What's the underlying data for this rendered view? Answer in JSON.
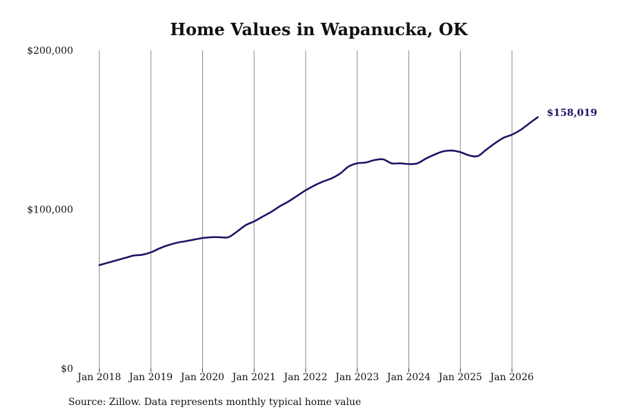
{
  "chart_data": {
    "type": "line",
    "title": "Home Values in Wapanucka, OK",
    "xlabel": "",
    "ylabel": "",
    "source": "Source: Zillow. Data represents monthly typical home value",
    "ylim": [
      0,
      200000
    ],
    "y_ticks": [
      {
        "value": 0,
        "label": "$0"
      },
      {
        "value": 100000,
        "label": "$100,000"
      },
      {
        "value": 200000,
        "label": "$200,000"
      }
    ],
    "x_ticks": [
      {
        "value": "2018-01",
        "label": "Jan 2018"
      },
      {
        "value": "2019-01",
        "label": "Jan 2019"
      },
      {
        "value": "2020-01",
        "label": "Jan 2020"
      },
      {
        "value": "2021-01",
        "label": "Jan 2021"
      },
      {
        "value": "2022-01",
        "label": "Jan 2022"
      },
      {
        "value": "2023-01",
        "label": "Jan 2023"
      },
      {
        "value": "2024-01",
        "label": "Jan 2024"
      },
      {
        "value": "2025-01",
        "label": "Jan 2025"
      },
      {
        "value": "2026-01",
        "label": "Jan 2026"
      }
    ],
    "grid": "vertical",
    "end_label": "$158,019",
    "colors": {
      "line": "#1b1464",
      "grid": "#888888"
    },
    "series": [
      {
        "x": [
          "2018-01",
          "2018-03",
          "2018-05",
          "2018-07",
          "2018-09",
          "2018-11",
          "2019-01",
          "2019-03",
          "2019-05",
          "2019-07",
          "2019-09",
          "2019-11",
          "2020-01",
          "2020-03",
          "2020-05",
          "2020-07",
          "2020-09",
          "2020-11",
          "2021-01",
          "2021-03",
          "2021-05",
          "2021-07",
          "2021-09",
          "2021-11",
          "2022-01",
          "2022-03",
          "2022-05",
          "2022-07",
          "2022-09",
          "2022-11",
          "2023-01",
          "2023-03",
          "2023-05",
          "2023-07",
          "2023-09",
          "2023-11",
          "2024-01",
          "2024-03",
          "2024-05",
          "2024-07",
          "2024-09",
          "2024-11",
          "2025-01",
          "2025-03",
          "2025-05",
          "2025-07",
          "2025-09",
          "2025-11",
          "2026-01",
          "2026-03",
          "2026-05",
          "2026-07"
        ],
        "y": [
          65000,
          66500,
          68000,
          69500,
          71000,
          71500,
          73000,
          75500,
          77500,
          79000,
          80000,
          81000,
          82000,
          82500,
          82500,
          82500,
          86000,
          90000,
          92500,
          95500,
          98500,
          102000,
          105000,
          108500,
          112000,
          115000,
          117500,
          119500,
          122500,
          127000,
          129000,
          129500,
          131000,
          131500,
          129000,
          129000,
          128500,
          129000,
          132000,
          134500,
          136500,
          137000,
          136000,
          134000,
          133500,
          137500,
          141500,
          145000,
          147000,
          150000,
          154000,
          158019
        ]
      }
    ]
  }
}
